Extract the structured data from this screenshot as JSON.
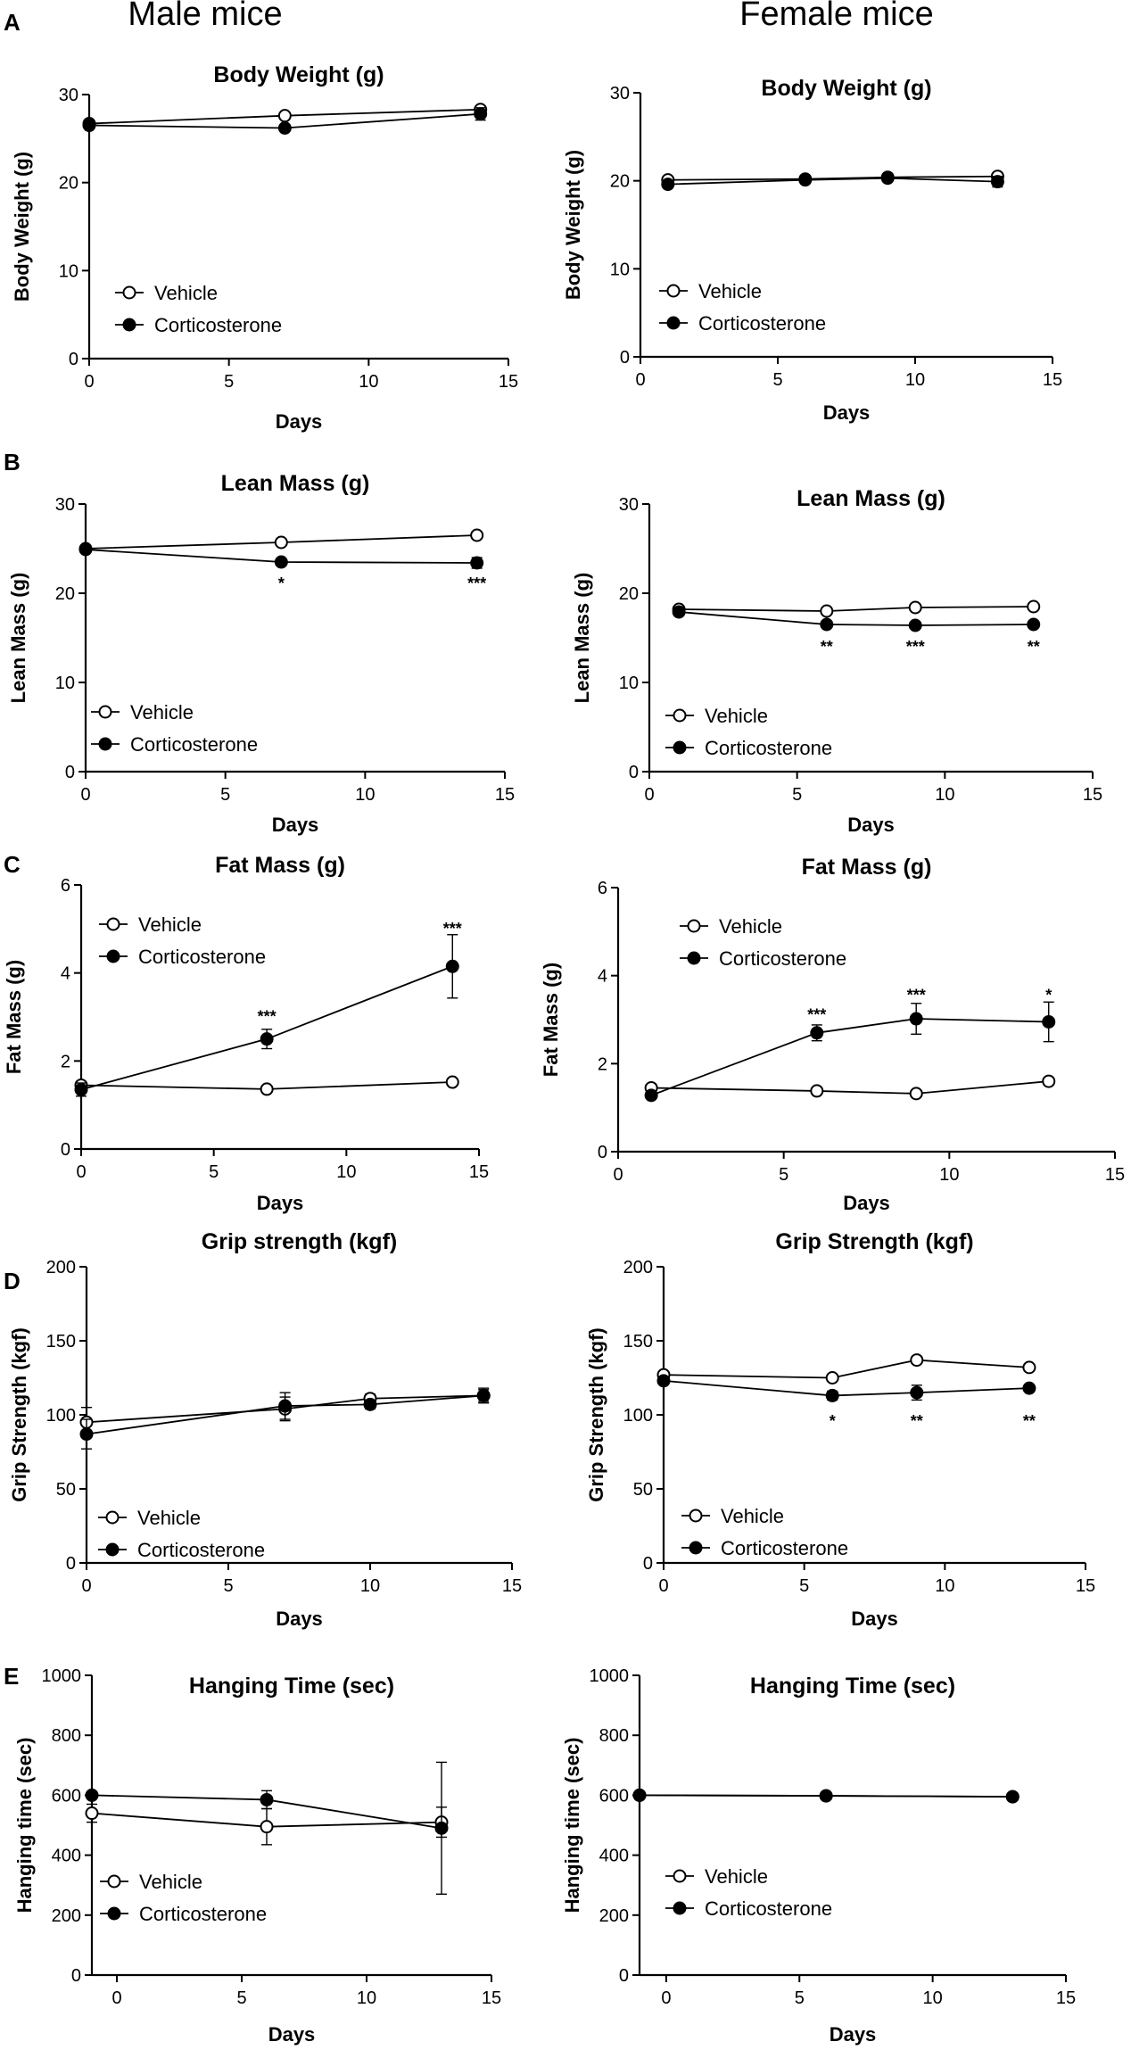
{
  "column_headers": {
    "male": "Male mice",
    "female": "Female mice"
  },
  "panel_letters": [
    "A",
    "B",
    "C",
    "D",
    "E"
  ],
  "legend": {
    "open": "Vehicle",
    "closed": "Corticosterone"
  },
  "chart_data": [
    {
      "id": "A-male",
      "type": "line",
      "title": "Body Weight (g)",
      "xlabel": "Days",
      "ylabel": "Body Weight (g)",
      "xlim": [
        0,
        15
      ],
      "ylim": [
        0,
        30
      ],
      "xticks": [
        0,
        5,
        10,
        15
      ],
      "yticks": [
        0,
        10,
        20,
        30
      ],
      "series": [
        {
          "name": "Vehicle",
          "x": [
            0,
            7,
            14
          ],
          "y": [
            26.7,
            27.6,
            28.3
          ],
          "err": [
            0.3,
            0.3,
            0.4
          ]
        },
        {
          "name": "Corticosterone",
          "x": [
            0,
            7,
            14
          ],
          "y": [
            26.5,
            26.2,
            27.8
          ],
          "err": [
            0.3,
            0.3,
            0.7
          ]
        }
      ],
      "annotations": []
    },
    {
      "id": "A-female",
      "type": "line",
      "title": "Body Weight (g)",
      "xlabel": "Days",
      "ylabel": "Body Weight (g)",
      "xlim": [
        0,
        15
      ],
      "ylim": [
        0,
        30
      ],
      "xticks": [
        0,
        5,
        10,
        15
      ],
      "yticks": [
        0,
        10,
        20,
        30
      ],
      "series": [
        {
          "name": "Vehicle",
          "x": [
            1,
            6,
            9,
            13
          ],
          "y": [
            20.1,
            20.2,
            20.4,
            20.5
          ],
          "err": [
            0.3,
            0.3,
            0.3,
            0.3
          ]
        },
        {
          "name": "Corticosterone",
          "x": [
            1,
            6,
            9,
            13
          ],
          "y": [
            19.6,
            20.1,
            20.3,
            19.9
          ],
          "err": [
            0.3,
            0.3,
            0.3,
            0.6
          ]
        }
      ],
      "annotations": []
    },
    {
      "id": "B-male",
      "type": "line",
      "title": "Lean Mass (g)",
      "xlabel": "Days",
      "ylabel": "Lean Mass (g)",
      "xlim": [
        0,
        15
      ],
      "ylim": [
        0,
        30
      ],
      "xticks": [
        0,
        5,
        10,
        15
      ],
      "yticks": [
        0,
        10,
        20,
        30
      ],
      "series": [
        {
          "name": "Vehicle",
          "x": [
            0,
            7,
            14
          ],
          "y": [
            25.0,
            25.7,
            26.5
          ],
          "err": [
            0.3,
            0.3,
            0.3
          ]
        },
        {
          "name": "Corticosterone",
          "x": [
            0,
            7,
            14
          ],
          "y": [
            24.9,
            23.5,
            23.4
          ],
          "err": [
            0.3,
            0.3,
            0.6
          ]
        }
      ],
      "annotations": [
        {
          "x": 7,
          "y": 21.3,
          "text": "*"
        },
        {
          "x": 14,
          "y": 21.3,
          "text": "***"
        }
      ]
    },
    {
      "id": "B-female",
      "type": "line",
      "title": "Lean Mass (g)",
      "xlabel": "Days",
      "ylabel": "Lean Mass (g)",
      "xlim": [
        0,
        15
      ],
      "ylim": [
        0,
        30
      ],
      "xticks": [
        0,
        5,
        10,
        15
      ],
      "yticks": [
        0,
        10,
        20,
        30
      ],
      "series": [
        {
          "name": "Vehicle",
          "x": [
            1,
            6,
            9,
            13
          ],
          "y": [
            18.2,
            18.0,
            18.4,
            18.5
          ],
          "err": [
            0.3,
            0.3,
            0.3,
            0.3
          ]
        },
        {
          "name": "Corticosterone",
          "x": [
            1,
            6,
            9,
            13
          ],
          "y": [
            17.9,
            16.5,
            16.4,
            16.5
          ],
          "err": [
            0.3,
            0.3,
            0.3,
            0.3
          ]
        }
      ],
      "annotations": [
        {
          "x": 6,
          "y": 14.2,
          "text": "**"
        },
        {
          "x": 9,
          "y": 14.2,
          "text": "***"
        },
        {
          "x": 13,
          "y": 14.2,
          "text": "**"
        }
      ]
    },
    {
      "id": "C-male",
      "type": "line",
      "title": "Fat Mass (g)",
      "xlabel": "Days",
      "ylabel": "Fat Mass (g)",
      "xlim": [
        0,
        15
      ],
      "ylim": [
        0,
        6
      ],
      "xticks": [
        0,
        5,
        10,
        15
      ],
      "yticks": [
        0,
        2,
        4,
        6
      ],
      "series": [
        {
          "name": "Vehicle",
          "x": [
            0,
            7,
            14
          ],
          "y": [
            1.45,
            1.36,
            1.52
          ],
          "err": [
            0.08,
            0.05,
            0.05
          ]
        },
        {
          "name": "Corticosterone",
          "x": [
            0,
            7,
            14
          ],
          "y": [
            1.35,
            2.5,
            4.15
          ],
          "err": [
            0.15,
            0.22,
            0.72
          ]
        }
      ],
      "annotations": [
        {
          "x": 7,
          "y": 3.05,
          "text": "***"
        },
        {
          "x": 14,
          "y": 5.05,
          "text": "***"
        }
      ]
    },
    {
      "id": "C-female",
      "type": "line",
      "title": "Fat Mass (g)",
      "xlabel": "Days",
      "ylabel": "Fat Mass (g)",
      "xlim": [
        0,
        15
      ],
      "ylim": [
        0,
        6
      ],
      "xticks": [
        0,
        5,
        10,
        15
      ],
      "yticks": [
        0,
        2,
        4,
        6
      ],
      "series": [
        {
          "name": "Vehicle",
          "x": [
            1,
            6,
            9,
            13
          ],
          "y": [
            1.45,
            1.38,
            1.32,
            1.6
          ],
          "err": [
            0.05,
            0.05,
            0.05,
            0.05
          ]
        },
        {
          "name": "Corticosterone",
          "x": [
            1,
            6,
            9,
            13
          ],
          "y": [
            1.28,
            2.7,
            3.02,
            2.95
          ],
          "err": [
            0.05,
            0.18,
            0.35,
            0.45
          ]
        }
      ],
      "annotations": [
        {
          "x": 6,
          "y": 3.15,
          "text": "***"
        },
        {
          "x": 9,
          "y": 3.6,
          "text": "***"
        },
        {
          "x": 13,
          "y": 3.6,
          "text": "*"
        }
      ]
    },
    {
      "id": "D-male",
      "type": "line",
      "title": "Grip strength (kgf)",
      "xlabel": "Days",
      "ylabel": "Grip Strength (kgf)",
      "xlim": [
        0,
        15
      ],
      "ylim": [
        0,
        200
      ],
      "xticks": [
        0,
        5,
        10,
        15
      ],
      "yticks": [
        0,
        50,
        100,
        150,
        200
      ],
      "series": [
        {
          "name": "Vehicle",
          "x": [
            0,
            7,
            10,
            14
          ],
          "y": [
            95,
            104,
            111,
            113
          ],
          "err": [
            10,
            8,
            3,
            5
          ]
        },
        {
          "name": "Corticosterone",
          "x": [
            0,
            7,
            10,
            14
          ],
          "y": [
            87,
            106,
            107,
            113
          ],
          "err": [
            10,
            9,
            3,
            4
          ]
        }
      ],
      "annotations": []
    },
    {
      "id": "D-female",
      "type": "line",
      "title": "Grip Strength (kgf)",
      "xlabel": "Days",
      "ylabel": "Grip Strength (kgf)",
      "xlim": [
        0,
        15
      ],
      "ylim": [
        0,
        200
      ],
      "xticks": [
        0,
        5,
        10,
        15
      ],
      "yticks": [
        0,
        50,
        100,
        150,
        200
      ],
      "series": [
        {
          "name": "Vehicle",
          "x": [
            0,
            6,
            9,
            13
          ],
          "y": [
            127,
            125,
            137,
            132
          ],
          "err": [
            2,
            2,
            2,
            2
          ]
        },
        {
          "name": "Corticosterone",
          "x": [
            0,
            6,
            9,
            13
          ],
          "y": [
            123,
            113,
            115,
            118
          ],
          "err": [
            2,
            3,
            5,
            2
          ]
        }
      ],
      "annotations": [
        {
          "x": 6,
          "y": 97,
          "text": "*"
        },
        {
          "x": 9,
          "y": 97,
          "text": "**"
        },
        {
          "x": 13,
          "y": 97,
          "text": "**"
        }
      ]
    },
    {
      "id": "E-male",
      "type": "line",
      "title": "Hanging Time (sec)",
      "xlabel": "Days",
      "ylabel": "Hanging time (sec)",
      "xlim": [
        -1,
        15
      ],
      "ylim": [
        0,
        1000
      ],
      "xticks": [
        0,
        5,
        10,
        15
      ],
      "yticks": [
        0,
        200,
        400,
        600,
        800,
        1000
      ],
      "series": [
        {
          "name": "Vehicle",
          "x": [
            -1,
            6,
            13
          ],
          "y": [
            540,
            495,
            510
          ],
          "err": [
            30,
            60,
            50
          ]
        },
        {
          "name": "Corticosterone",
          "x": [
            -1,
            6,
            13
          ],
          "y": [
            600,
            585,
            490
          ],
          "err": [
            10,
            30,
            220
          ]
        }
      ],
      "annotations": []
    },
    {
      "id": "E-female",
      "type": "line",
      "title": "Hanging Time (sec)",
      "xlabel": "Days",
      "ylabel": "Hanging time (sec)",
      "xlim": [
        -1,
        15
      ],
      "ylim": [
        0,
        1000
      ],
      "xticks": [
        0,
        5,
        10,
        15
      ],
      "yticks": [
        0,
        200,
        400,
        600,
        800,
        1000
      ],
      "series": [
        {
          "name": "Vehicle",
          "x": [
            -1,
            6,
            13
          ],
          "y": [
            600,
            598,
            595
          ],
          "err": [
            0,
            0,
            0
          ]
        },
        {
          "name": "Corticosterone",
          "x": [
            -1,
            6,
            13
          ],
          "y": [
            600,
            598,
            595
          ],
          "err": [
            0,
            0,
            0
          ]
        }
      ],
      "annotations": []
    }
  ]
}
